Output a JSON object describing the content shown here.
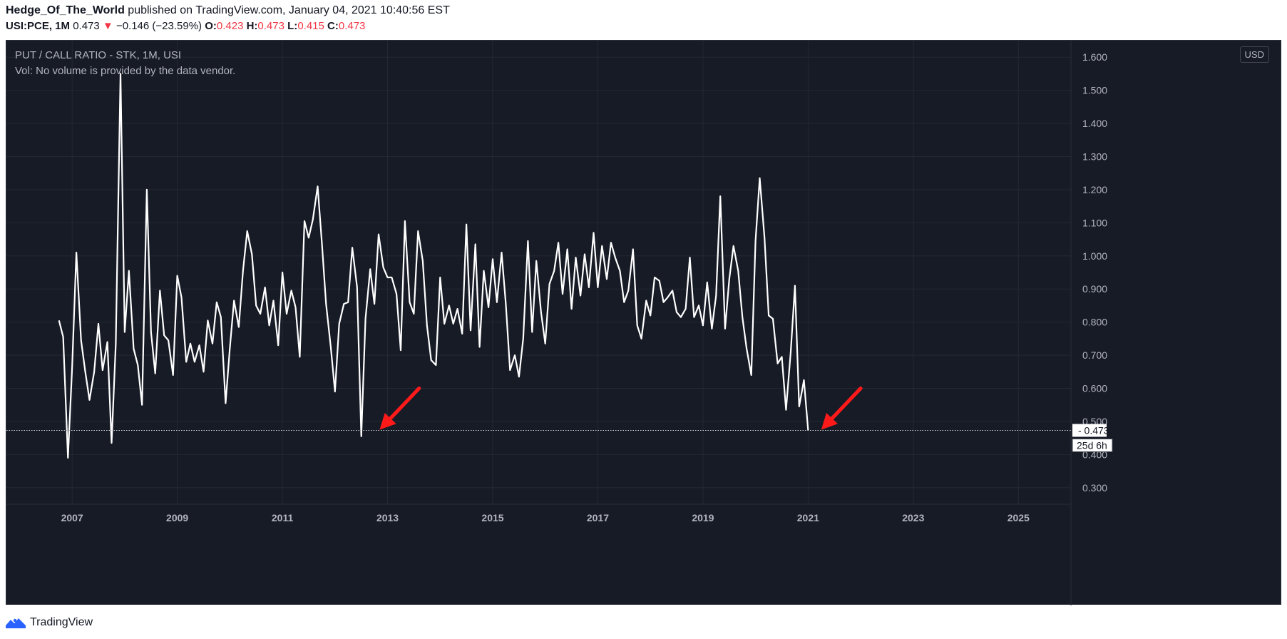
{
  "header": {
    "author": "Hedge_Of_The_World",
    "published_text": "published on TradingView.com, January 04, 2021 10:40:56 EST",
    "symbol": "USI:PCE, 1M",
    "last": "0.473",
    "change_arrow": "▼",
    "change": "−0.146 (−23.59%)",
    "o_label": "O:",
    "o_value": "0.423",
    "h_label": "H:",
    "h_value": "0.473",
    "l_label": "L:",
    "l_value": "0.415",
    "c_label": "C:",
    "c_value": "0.473"
  },
  "chart_legend": {
    "title": "PUT / CALL RATIO - STK, 1M, USI",
    "volume_note": "Vol: No volume is provided by the data vendor."
  },
  "currency_button": "USD",
  "price_label": "0.473",
  "countdown_label": "25d 6h",
  "footer": {
    "brand": "TradingView",
    "logo_icon": "tradingview-logo-icon"
  },
  "colors": {
    "background": "#171b26",
    "line": "#ffffff",
    "grid": "#242833",
    "axis_text": "#b2b5be",
    "arrow": "#ff1a1a",
    "negative": "#f23645"
  },
  "chart_data": {
    "type": "line",
    "title": "PUT / CALL RATIO - STK, 1M, USI",
    "xlabel": "",
    "ylabel": "",
    "xlim": [
      2005.75,
      2026.0
    ],
    "ylim": [
      0.25,
      1.65
    ],
    "y_ticks": [
      "0.300",
      "0.400",
      "0.500",
      "0.600",
      "0.700",
      "0.800",
      "0.900",
      "1.000",
      "1.100",
      "1.200",
      "1.300",
      "1.400",
      "1.500",
      "1.600"
    ],
    "x_ticks": [
      "2007",
      "2009",
      "2011",
      "2013",
      "2015",
      "2017",
      "2019",
      "2021",
      "2023",
      "2025"
    ],
    "grid": true,
    "last_value": 0.473,
    "series": [
      {
        "name": "USI:PCE",
        "x": [
          2006.75,
          2006.83,
          2006.92,
          2007.0,
          2007.08,
          2007.17,
          2007.25,
          2007.33,
          2007.42,
          2007.5,
          2007.58,
          2007.67,
          2007.75,
          2007.83,
          2007.92,
          2008.0,
          2008.08,
          2008.17,
          2008.25,
          2008.33,
          2008.42,
          2008.5,
          2008.58,
          2008.67,
          2008.75,
          2008.83,
          2008.92,
          2009.0,
          2009.08,
          2009.17,
          2009.25,
          2009.33,
          2009.42,
          2009.5,
          2009.58,
          2009.67,
          2009.75,
          2009.83,
          2009.92,
          2010.0,
          2010.08,
          2010.17,
          2010.25,
          2010.33,
          2010.42,
          2010.5,
          2010.58,
          2010.67,
          2010.75,
          2010.83,
          2010.92,
          2011.0,
          2011.08,
          2011.17,
          2011.25,
          2011.33,
          2011.42,
          2011.5,
          2011.58,
          2011.67,
          2011.75,
          2011.83,
          2011.92,
          2012.0,
          2012.08,
          2012.17,
          2012.25,
          2012.33,
          2012.42,
          2012.5,
          2012.58,
          2012.67,
          2012.75,
          2012.83,
          2012.92,
          2013.0,
          2013.08,
          2013.17,
          2013.25,
          2013.33,
          2013.42,
          2013.5,
          2013.58,
          2013.67,
          2013.75,
          2013.83,
          2013.92,
          2014.0,
          2014.08,
          2014.17,
          2014.25,
          2014.33,
          2014.42,
          2014.5,
          2014.58,
          2014.67,
          2014.75,
          2014.83,
          2014.92,
          2015.0,
          2015.08,
          2015.17,
          2015.25,
          2015.33,
          2015.42,
          2015.5,
          2015.58,
          2015.67,
          2015.75,
          2015.83,
          2015.92,
          2016.0,
          2016.08,
          2016.17,
          2016.25,
          2016.33,
          2016.42,
          2016.5,
          2016.58,
          2016.67,
          2016.75,
          2016.83,
          2016.92,
          2017.0,
          2017.08,
          2017.17,
          2017.25,
          2017.33,
          2017.42,
          2017.5,
          2017.58,
          2017.67,
          2017.75,
          2017.83,
          2017.92,
          2018.0,
          2018.08,
          2018.17,
          2018.25,
          2018.33,
          2018.42,
          2018.5,
          2018.58,
          2018.67,
          2018.75,
          2018.83,
          2018.92,
          2019.0,
          2019.08,
          2019.17,
          2019.25,
          2019.33,
          2019.42,
          2019.5,
          2019.58,
          2019.67,
          2019.75,
          2019.83,
          2019.92,
          2020.0,
          2020.08,
          2020.17,
          2020.25,
          2020.33,
          2020.42,
          2020.5,
          2020.58,
          2020.67,
          2020.75,
          2020.83,
          2020.92,
          2021.0
        ],
        "values": [
          0.805,
          0.755,
          0.39,
          0.665,
          1.01,
          0.745,
          0.65,
          0.565,
          0.65,
          0.795,
          0.655,
          0.74,
          0.435,
          0.735,
          1.55,
          0.77,
          0.955,
          0.72,
          0.67,
          0.55,
          1.2,
          0.77,
          0.645,
          0.895,
          0.76,
          0.745,
          0.64,
          0.94,
          0.875,
          0.68,
          0.735,
          0.68,
          0.73,
          0.65,
          0.805,
          0.735,
          0.86,
          0.815,
          0.555,
          0.72,
          0.865,
          0.785,
          0.955,
          1.075,
          1.005,
          0.85,
          0.825,
          0.905,
          0.79,
          0.865,
          0.73,
          0.95,
          0.825,
          0.895,
          0.845,
          0.695,
          1.105,
          1.055,
          1.11,
          1.21,
          1.04,
          0.855,
          0.725,
          0.59,
          0.795,
          0.855,
          0.86,
          1.025,
          0.905,
          0.455,
          0.81,
          0.96,
          0.855,
          1.065,
          0.965,
          0.935,
          0.935,
          0.885,
          0.715,
          1.105,
          0.86,
          0.825,
          1.075,
          0.985,
          0.79,
          0.685,
          0.67,
          0.935,
          0.795,
          0.85,
          0.795,
          0.84,
          0.765,
          1.095,
          0.775,
          1.035,
          0.725,
          0.955,
          0.845,
          0.99,
          0.86,
          1.01,
          0.855,
          0.655,
          0.7,
          0.635,
          0.75,
          1.045,
          0.77,
          0.985,
          0.83,
          0.735,
          0.915,
          0.955,
          1.04,
          0.885,
          1.02,
          0.84,
          0.995,
          0.88,
          1.005,
          0.905,
          1.07,
          0.905,
          1.03,
          0.93,
          1.04,
          0.995,
          0.955,
          0.86,
          0.895,
          1.02,
          0.79,
          0.75,
          0.865,
          0.82,
          0.935,
          0.925,
          0.86,
          0.875,
          0.895,
          0.83,
          0.815,
          0.84,
          0.995,
          0.815,
          0.85,
          0.79,
          0.92,
          0.78,
          0.88,
          1.18,
          0.78,
          0.93,
          1.03,
          0.955,
          0.815,
          0.72,
          0.64,
          1.045,
          1.235,
          1.055,
          0.82,
          0.81,
          0.675,
          0.695,
          0.535,
          0.71,
          0.91,
          0.545,
          0.625,
          0.473
        ]
      }
    ],
    "annotations": [
      {
        "type": "arrow",
        "color": "#ff1a1a",
        "from": [
          2013.6,
          0.6
        ],
        "to": [
          2012.85,
          0.475
        ]
      },
      {
        "type": "arrow",
        "color": "#ff1a1a",
        "from": [
          2022.0,
          0.6
        ],
        "to": [
          2021.25,
          0.475
        ]
      }
    ]
  }
}
